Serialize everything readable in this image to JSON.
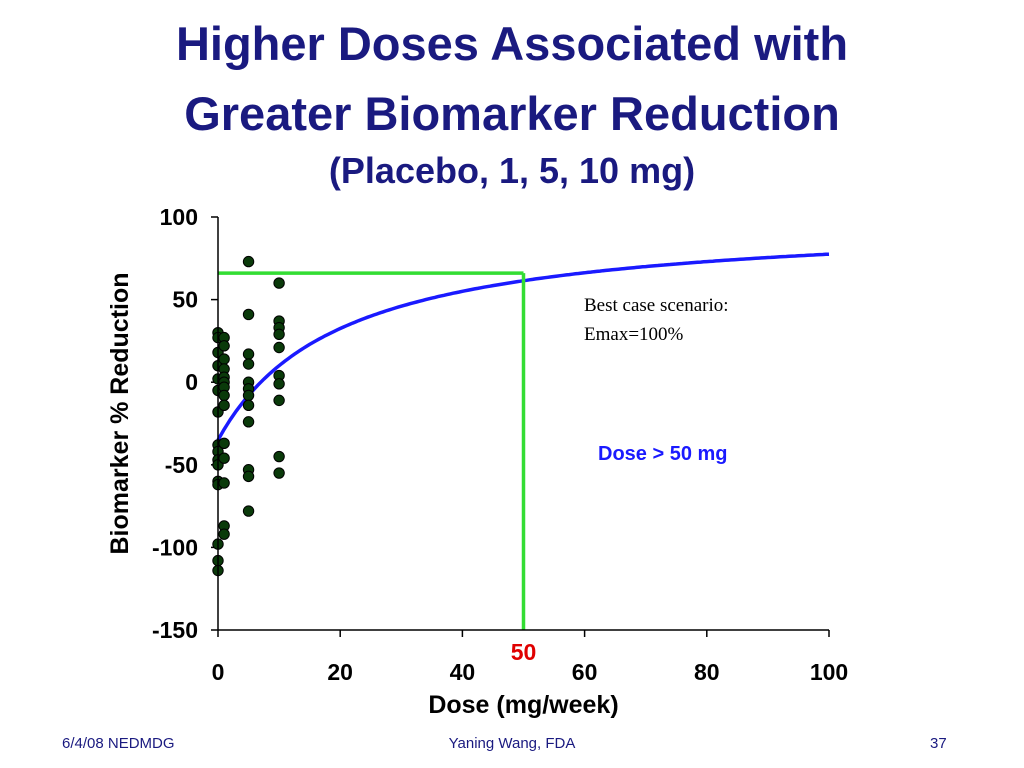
{
  "slide": {
    "title_line1": "Higher Doses Associated with",
    "title_line2": "Greater Biomarker Reduction",
    "subtitle": "(Placebo, 1, 5, 10 mg)"
  },
  "footer": {
    "left": "6/4/08 NEDMDG",
    "center": "Yaning Wang, FDA",
    "right": "37"
  },
  "colors": {
    "title": "#1a1a80",
    "curve": "#1a1aff",
    "reference_line": "#33dd33",
    "points": "#0a3a0a",
    "marker_label": "#e00000",
    "annotation_blue": "#1a1aff"
  },
  "chart_data": {
    "type": "scatter",
    "xlabel": "Dose (mg/week)",
    "ylabel": "Biomarker % Reduction",
    "xlim": [
      0,
      100
    ],
    "ylim": [
      -150,
      100
    ],
    "xticks": [
      0,
      20,
      40,
      60,
      80,
      100
    ],
    "yticks": [
      100,
      50,
      0,
      -50,
      -100,
      -150
    ],
    "grid": false,
    "series": [
      {
        "kind": "points",
        "points": [
          [
            0,
            30
          ],
          [
            0,
            27
          ],
          [
            0,
            18
          ],
          [
            0,
            10
          ],
          [
            0,
            2
          ],
          [
            0,
            -5
          ],
          [
            0,
            -18
          ],
          [
            0,
            -38
          ],
          [
            0,
            -42
          ],
          [
            0,
            -47
          ],
          [
            0,
            -50
          ],
          [
            0,
            -60
          ],
          [
            0,
            -62
          ],
          [
            0,
            -98
          ],
          [
            0,
            -108
          ],
          [
            0,
            -114
          ],
          [
            1,
            27
          ],
          [
            1,
            22
          ],
          [
            1,
            14
          ],
          [
            1,
            8
          ],
          [
            1,
            3
          ],
          [
            1,
            0
          ],
          [
            1,
            -3
          ],
          [
            1,
            -8
          ],
          [
            1,
            -14
          ],
          [
            1,
            -37
          ],
          [
            1,
            -46
          ],
          [
            1,
            -61
          ],
          [
            1,
            -87
          ],
          [
            1,
            -92
          ],
          [
            5,
            73
          ],
          [
            5,
            41
          ],
          [
            5,
            17
          ],
          [
            5,
            11
          ],
          [
            5,
            0
          ],
          [
            5,
            -4
          ],
          [
            5,
            -8
          ],
          [
            5,
            -14
          ],
          [
            5,
            -24
          ],
          [
            5,
            -53
          ],
          [
            5,
            -57
          ],
          [
            5,
            -78
          ],
          [
            10,
            60
          ],
          [
            10,
            37
          ],
          [
            10,
            33
          ],
          [
            10,
            29
          ],
          [
            10,
            21
          ],
          [
            10,
            4
          ],
          [
            10,
            -1
          ],
          [
            10,
            -11
          ],
          [
            10,
            -45
          ],
          [
            10,
            -55
          ]
        ]
      },
      {
        "kind": "curve",
        "model": "Emax",
        "e0": -35,
        "emax": 135,
        "ed50": 20,
        "x_range": [
          0,
          100
        ]
      },
      {
        "kind": "reference",
        "x": 50,
        "y": 66
      }
    ],
    "annotations": {
      "best_case_line1": "Best case scenario:",
      "best_case_line2": "Emax=100%",
      "dose_note": "Dose > 50 mg",
      "x_marker_label": "50"
    }
  }
}
